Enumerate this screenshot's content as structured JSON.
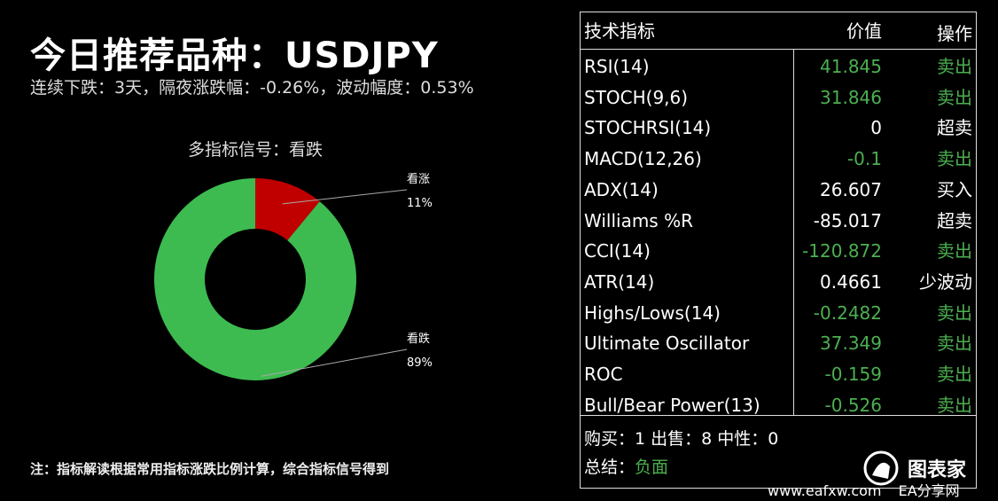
{
  "header": {
    "title": "今日推荐品种：USDJPY",
    "subtitle": "连续下跌：3天，隔夜涨跌幅：-0.26%，波动幅度：0.53%"
  },
  "chart_data": {
    "type": "pie",
    "title": "多指标信号：看跌",
    "slices": [
      {
        "label": "看涨",
        "value": 11,
        "display": "11%",
        "color": "#c00000"
      },
      {
        "label": "看跌",
        "value": 89,
        "display": "89%",
        "color": "#3dbb50"
      }
    ],
    "donut": true
  },
  "note": "注：指标解读根据常用指标涨跌比例计算，综合指标信号得到",
  "table": {
    "headers": {
      "name": "技术指标",
      "value": "价值",
      "action": "操作"
    },
    "rows": [
      {
        "name": "RSI(14)",
        "value": "41.845",
        "action": "卖出",
        "value_color": "green",
        "action_color": "green"
      },
      {
        "name": "STOCH(9,6)",
        "value": "31.846",
        "action": "卖出",
        "value_color": "green",
        "action_color": "green"
      },
      {
        "name": "STOCHRSI(14)",
        "value": "0",
        "action": "超卖",
        "value_color": "white",
        "action_color": "white"
      },
      {
        "name": "MACD(12,26)",
        "value": "-0.1",
        "action": "卖出",
        "value_color": "green",
        "action_color": "green"
      },
      {
        "name": "ADX(14)",
        "value": "26.607",
        "action": "买入",
        "value_color": "white",
        "action_color": "white"
      },
      {
        "name": "Williams %R",
        "value": "-85.017",
        "action": "超卖",
        "value_color": "white",
        "action_color": "white"
      },
      {
        "name": "CCI(14)",
        "value": "-120.872",
        "action": "卖出",
        "value_color": "green",
        "action_color": "green"
      },
      {
        "name": "ATR(14)",
        "value": "0.4661",
        "action": "少波动",
        "value_color": "white",
        "action_color": "white"
      },
      {
        "name": "Highs/Lows(14)",
        "value": "-0.2482",
        "action": "卖出",
        "value_color": "green",
        "action_color": "green"
      },
      {
        "name": "Ultimate Oscillator",
        "value": "37.349",
        "action": "卖出",
        "value_color": "green",
        "action_color": "green"
      },
      {
        "name": "ROC",
        "value": "-0.159",
        "action": "卖出",
        "value_color": "green",
        "action_color": "green"
      },
      {
        "name": "Bull/Bear Power(13)",
        "value": "-0.526",
        "action": "卖出",
        "value_color": "green",
        "action_color": "green"
      }
    ],
    "counts": "购买：1 出售：8 中性：0",
    "conclusion_label": "总结：",
    "conclusion_value": "负面"
  },
  "watermark": {
    "url": "www.eafxw.com",
    "logo": "图表家",
    "site": "EA分享网"
  }
}
